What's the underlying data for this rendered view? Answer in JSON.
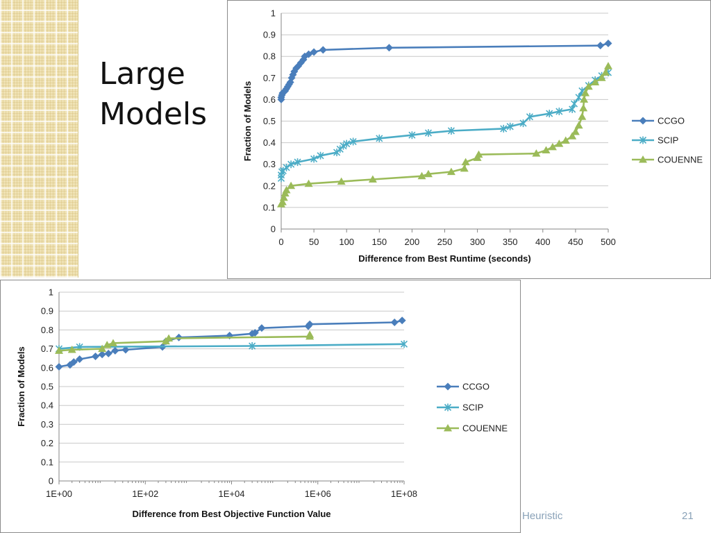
{
  "slide": {
    "title": "Large\nModels",
    "footer": "Heuristic",
    "page_number": "21"
  },
  "chart_data": [
    {
      "type": "line",
      "xlabel": "Difference from Best Runtime (seconds)",
      "ylabel": "Fraction of Models",
      "xlim": [
        0,
        500
      ],
      "ylim": [
        0,
        1
      ],
      "x_ticks": [
        "0",
        "50",
        "100",
        "150",
        "200",
        "250",
        "300",
        "350",
        "400",
        "450",
        "500"
      ],
      "y_ticks": [
        "0",
        "0.1",
        "0.2",
        "0.3",
        "0.4",
        "0.5",
        "0.6",
        "0.7",
        "0.8",
        "0.9",
        "1"
      ],
      "grid": "horizontal",
      "legend_position": "right",
      "series": [
        {
          "name": "CCGO",
          "color": "#4a7ebb",
          "marker": "diamond",
          "points": [
            [
              0,
              0.6
            ],
            [
              0,
              0.61
            ],
            [
              1,
              0.62
            ],
            [
              2,
              0.63
            ],
            [
              4,
              0.635
            ],
            [
              6,
              0.64
            ],
            [
              8,
              0.65
            ],
            [
              10,
              0.66
            ],
            [
              12,
              0.67
            ],
            [
              14,
              0.68
            ],
            [
              16,
              0.7
            ],
            [
              18,
              0.715
            ],
            [
              20,
              0.73
            ],
            [
              23,
              0.745
            ],
            [
              26,
              0.755
            ],
            [
              30,
              0.77
            ],
            [
              34,
              0.785
            ],
            [
              36,
              0.8
            ],
            [
              42,
              0.81
            ],
            [
              50,
              0.82
            ],
            [
              64,
              0.83
            ],
            [
              165,
              0.84
            ],
            [
              488,
              0.85
            ],
            [
              500,
              0.86
            ]
          ]
        },
        {
          "name": "SCIP",
          "color": "#4bacc6",
          "marker": "star",
          "points": [
            [
              0,
              0.235
            ],
            [
              0,
              0.25
            ],
            [
              1,
              0.265
            ],
            [
              3,
              0.27
            ],
            [
              8,
              0.285
            ],
            [
              15,
              0.3
            ],
            [
              25,
              0.31
            ],
            [
              50,
              0.325
            ],
            [
              60,
              0.34
            ],
            [
              85,
              0.355
            ],
            [
              90,
              0.37
            ],
            [
              95,
              0.385
            ],
            [
              100,
              0.395
            ],
            [
              110,
              0.405
            ],
            [
              150,
              0.42
            ],
            [
              200,
              0.435
            ],
            [
              225,
              0.445
            ],
            [
              260,
              0.455
            ],
            [
              340,
              0.465
            ],
            [
              350,
              0.475
            ],
            [
              370,
              0.49
            ],
            [
              380,
              0.52
            ],
            [
              410,
              0.535
            ],
            [
              425,
              0.545
            ],
            [
              445,
              0.555
            ],
            [
              448,
              0.58
            ],
            [
              455,
              0.61
            ],
            [
              460,
              0.64
            ],
            [
              470,
              0.665
            ],
            [
              480,
              0.69
            ],
            [
              490,
              0.71
            ],
            [
              500,
              0.725
            ]
          ]
        },
        {
          "name": "COUENNE",
          "color": "#9bbb59",
          "marker": "triangle",
          "points": [
            [
              0,
              0.115
            ],
            [
              2,
              0.125
            ],
            [
              4,
              0.145
            ],
            [
              6,
              0.165
            ],
            [
              8,
              0.18
            ],
            [
              15,
              0.2
            ],
            [
              42,
              0.21
            ],
            [
              92,
              0.22
            ],
            [
              140,
              0.23
            ],
            [
              215,
              0.245
            ],
            [
              225,
              0.255
            ],
            [
              260,
              0.265
            ],
            [
              280,
              0.28
            ],
            [
              282,
              0.31
            ],
            [
              300,
              0.33
            ],
            [
              302,
              0.345
            ],
            [
              390,
              0.35
            ],
            [
              405,
              0.365
            ],
            [
              415,
              0.38
            ],
            [
              425,
              0.395
            ],
            [
              435,
              0.41
            ],
            [
              445,
              0.43
            ],
            [
              450,
              0.45
            ],
            [
              455,
              0.48
            ],
            [
              460,
              0.52
            ],
            [
              462,
              0.56
            ],
            [
              463,
              0.6
            ],
            [
              465,
              0.63
            ],
            [
              470,
              0.66
            ],
            [
              480,
              0.68
            ],
            [
              490,
              0.7
            ],
            [
              496,
              0.725
            ],
            [
              500,
              0.755
            ]
          ]
        }
      ]
    },
    {
      "type": "line",
      "xlabel": "Difference from Best Objective Function Value",
      "ylabel": "Fraction of Models",
      "x_scale": "log",
      "xlim": [
        1,
        100000000
      ],
      "ylim": [
        0,
        1
      ],
      "x_ticks": [
        "1E+00",
        "1E+02",
        "1E+04",
        "1E+06",
        "1E+08"
      ],
      "y_ticks": [
        "0",
        "0.1",
        "0.2",
        "0.3",
        "0.4",
        "0.5",
        "0.6",
        "0.7",
        "0.8",
        "0.9",
        "1"
      ],
      "grid": "horizontal",
      "legend_position": "right",
      "series": [
        {
          "name": "CCGO",
          "color": "#4a7ebb",
          "marker": "diamond",
          "points": [
            [
              1,
              0.605
            ],
            [
              1.8,
              0.615
            ],
            [
              2.2,
              0.63
            ],
            [
              3,
              0.645
            ],
            [
              7,
              0.66
            ],
            [
              10,
              0.67
            ],
            [
              14,
              0.675
            ],
            [
              20,
              0.69
            ],
            [
              35,
              0.695
            ],
            [
              250,
              0.71
            ],
            [
              300,
              0.74
            ],
            [
              600,
              0.76
            ],
            [
              9000,
              0.77
            ],
            [
              30000,
              0.78
            ],
            [
              35000,
              0.785
            ],
            [
              50000,
              0.81
            ],
            [
              600000,
              0.82
            ],
            [
              650000,
              0.83
            ],
            [
              60000000,
              0.84
            ],
            [
              90000000,
              0.85
            ]
          ]
        },
        {
          "name": "SCIP",
          "color": "#4bacc6",
          "marker": "star",
          "points": [
            [
              1,
              0.7
            ],
            [
              3,
              0.71
            ],
            [
              30000,
              0.715
            ],
            [
              100000000,
              0.725
            ]
          ]
        },
        {
          "name": "COUENNE",
          "color": "#9bbb59",
          "marker": "triangle",
          "points": [
            [
              1,
              0.69
            ],
            [
              2,
              0.695
            ],
            [
              10,
              0.7
            ],
            [
              13,
              0.72
            ],
            [
              18,
              0.73
            ],
            [
              300,
              0.74
            ],
            [
              350,
              0.755
            ],
            [
              650000,
              0.765
            ],
            [
              650000,
              0.775
            ]
          ]
        }
      ]
    }
  ]
}
